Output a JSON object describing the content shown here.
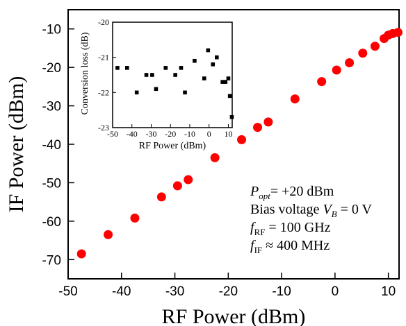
{
  "chart_data": [
    {
      "type": "scatter",
      "role": "main",
      "xlabel": "RF Power (dBm)",
      "ylabel": "IF Power (dBm)",
      "xlim": [
        -50,
        12
      ],
      "ylim": [
        -75,
        -5
      ],
      "xticks": [
        -50,
        -40,
        -30,
        -20,
        -10,
        0,
        10
      ],
      "yticks": [
        -70,
        -60,
        -50,
        -40,
        -30,
        -20,
        -10
      ],
      "marker_color": "#ff0000",
      "marker": "circle",
      "grid": false,
      "x": [
        -47.5,
        -42.5,
        -37.5,
        -32.5,
        -29.5,
        -27.5,
        -22.5,
        -17.5,
        -14.5,
        -12.5,
        -7.5,
        -2.5,
        0.3,
        2.7,
        5.2,
        7.5,
        9.2,
        10.0,
        10.8,
        11.8
      ],
      "y": [
        -68.5,
        -63.5,
        -59.2,
        -53.7,
        -50.8,
        -49.2,
        -43.5,
        -38.8,
        -35.6,
        -34.2,
        -28.2,
        -23.7,
        -20.7,
        -18.8,
        -16.3,
        -14.5,
        -12.5,
        -11.6,
        -11.2,
        -10.9
      ]
    },
    {
      "type": "scatter",
      "role": "inset",
      "xlabel": "RF Power (dBm)",
      "ylabel": "Conversion loss (dB)",
      "xlim": [
        -50,
        12
      ],
      "ylim": [
        -23,
        -20
      ],
      "xticks": [
        -50,
        -40,
        -30,
        -20,
        -10,
        0,
        10
      ],
      "yticks": [
        -23,
        -22,
        -21,
        -20
      ],
      "marker_color": "#000000",
      "marker": "square",
      "grid": false,
      "x": [
        -47.5,
        -42.5,
        -37.5,
        -32.5,
        -29.5,
        -27.5,
        -22.5,
        -17.5,
        -14.5,
        -12.5,
        -7.5,
        -2.5,
        -0.5,
        2.0,
        4.0,
        7.0,
        8.5,
        10.0,
        10.8,
        11.8
      ],
      "y": [
        -21.3,
        -21.3,
        -22.0,
        -21.5,
        -21.5,
        -21.9,
        -21.3,
        -21.5,
        -21.3,
        -22.0,
        -21.1,
        -21.6,
        -20.8,
        -21.2,
        -21.0,
        -21.7,
        -21.7,
        -21.6,
        -22.1,
        -22.7
      ]
    }
  ],
  "annotations": {
    "line1": {
      "main": "P",
      "sub": "opt",
      "value": "= +20 dBm"
    },
    "line2": {
      "main": "Bias voltage ",
      "var": "V",
      "sub": "B",
      "value": " = 0 V"
    },
    "line3": {
      "main": "f",
      "sub": "RF",
      "value": " = 100 GHz"
    },
    "line4": {
      "main": "f",
      "sub": "IF",
      "value": " ≈ 400 MHz"
    }
  }
}
